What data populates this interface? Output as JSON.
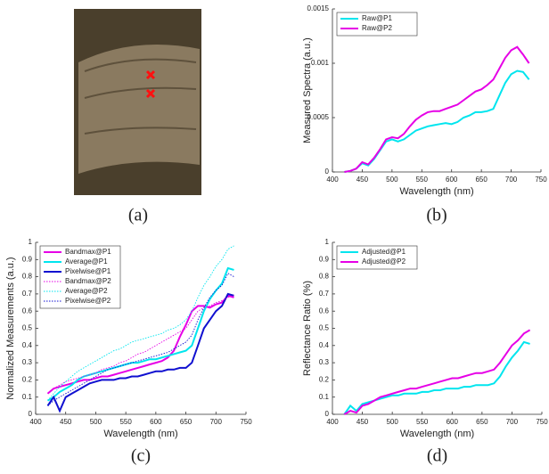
{
  "image_panel": {
    "caption": "(a)"
  },
  "chart_data": [
    {
      "type": "line",
      "caption": "(b)",
      "xlabel": "Wavelength (nm)",
      "ylabel": "Measured Spectra (a.u.)",
      "xlim": [
        400,
        750
      ],
      "xticks": [
        400,
        450,
        500,
        550,
        600,
        650,
        700,
        750
      ],
      "ylim": [
        0,
        0.0015
      ],
      "yticks": [
        0,
        0.0005,
        0.001,
        0.0015
      ],
      "legend": "upper-left",
      "x": [
        420,
        430,
        440,
        450,
        460,
        470,
        480,
        490,
        500,
        510,
        520,
        530,
        540,
        550,
        560,
        570,
        580,
        590,
        600,
        610,
        620,
        630,
        640,
        650,
        660,
        670,
        680,
        690,
        700,
        710,
        720,
        730
      ],
      "series": [
        {
          "name": "Raw@P1",
          "color": "#00e5ee",
          "line_style": "solid",
          "values": [
            0,
            1e-05,
            3e-05,
            8e-05,
            6e-05,
            0.00012,
            0.0002,
            0.00028,
            0.0003,
            0.00028,
            0.0003,
            0.00034,
            0.00038,
            0.0004,
            0.00042,
            0.00043,
            0.00044,
            0.00045,
            0.00044,
            0.00046,
            0.0005,
            0.00052,
            0.00055,
            0.00055,
            0.00056,
            0.00058,
            0.0007,
            0.00082,
            0.0009,
            0.00093,
            0.00092,
            0.00085
          ]
        },
        {
          "name": "Raw@P2",
          "color": "#e600e6",
          "line_style": "solid",
          "values": [
            0,
            1e-05,
            3e-05,
            9e-05,
            7e-05,
            0.00013,
            0.00021,
            0.0003,
            0.00032,
            0.00031,
            0.00035,
            0.00042,
            0.00048,
            0.00052,
            0.00055,
            0.00056,
            0.00056,
            0.00058,
            0.0006,
            0.00062,
            0.00066,
            0.0007,
            0.00074,
            0.00076,
            0.0008,
            0.00085,
            0.00095,
            0.00105,
            0.00112,
            0.00115,
            0.00108,
            0.001
          ]
        }
      ]
    },
    {
      "type": "line",
      "caption": "(c)",
      "xlabel": "Wavelength (nm)",
      "ylabel": "Normalized Measurements (a.u.)",
      "xlim": [
        400,
        750
      ],
      "xticks": [
        400,
        450,
        500,
        550,
        600,
        650,
        700,
        750
      ],
      "ylim": [
        0,
        1
      ],
      "yticks": [
        0,
        0.1,
        0.2,
        0.3,
        0.4,
        0.5,
        0.6,
        0.7,
        0.8,
        0.9,
        1
      ],
      "legend": "upper-left",
      "x": [
        420,
        430,
        440,
        450,
        460,
        470,
        480,
        490,
        500,
        510,
        520,
        530,
        540,
        550,
        560,
        570,
        580,
        590,
        600,
        610,
        620,
        630,
        640,
        650,
        660,
        670,
        680,
        690,
        700,
        710,
        720,
        730
      ],
      "series": [
        {
          "name": "Bandmax@P1",
          "color": "#e600e6",
          "line_style": "solid",
          "values": [
            0.12,
            0.15,
            0.16,
            0.17,
            0.18,
            0.19,
            0.2,
            0.2,
            0.21,
            0.22,
            0.22,
            0.23,
            0.24,
            0.25,
            0.26,
            0.27,
            0.28,
            0.29,
            0.3,
            0.31,
            0.33,
            0.37,
            0.45,
            0.52,
            0.6,
            0.63,
            0.63,
            0.62,
            0.64,
            0.65,
            0.69,
            0.68
          ]
        },
        {
          "name": "Average@P1",
          "color": "#00e5ee",
          "line_style": "solid",
          "values": [
            0.08,
            0.1,
            0.13,
            0.15,
            0.17,
            0.2,
            0.22,
            0.23,
            0.24,
            0.25,
            0.26,
            0.27,
            0.28,
            0.29,
            0.3,
            0.3,
            0.31,
            0.32,
            0.32,
            0.33,
            0.34,
            0.35,
            0.36,
            0.37,
            0.4,
            0.5,
            0.6,
            0.67,
            0.72,
            0.76,
            0.85,
            0.84
          ]
        },
        {
          "name": "Pixelwise@P1",
          "color": "#1010d0",
          "line_style": "solid",
          "values": [
            0.05,
            0.1,
            0.02,
            0.1,
            0.12,
            0.14,
            0.16,
            0.18,
            0.19,
            0.2,
            0.2,
            0.2,
            0.21,
            0.21,
            0.22,
            0.22,
            0.23,
            0.24,
            0.25,
            0.25,
            0.26,
            0.26,
            0.27,
            0.27,
            0.3,
            0.4,
            0.5,
            0.55,
            0.6,
            0.63,
            0.7,
            0.69
          ]
        },
        {
          "name": "Bandmax@P2",
          "color": "#e600e6",
          "line_style": "dotted",
          "values": [
            0.12,
            0.15,
            0.17,
            0.19,
            0.2,
            0.21,
            0.22,
            0.23,
            0.24,
            0.26,
            0.27,
            0.28,
            0.3,
            0.31,
            0.33,
            0.35,
            0.36,
            0.38,
            0.4,
            0.42,
            0.44,
            0.46,
            0.48,
            0.5,
            0.55,
            0.6,
            0.62,
            0.63,
            0.65,
            0.66,
            0.68,
            0.69
          ]
        },
        {
          "name": "Average@P2",
          "color": "#00e5ee",
          "line_style": "dotted",
          "values": [
            0.08,
            0.12,
            0.16,
            0.19,
            0.22,
            0.25,
            0.27,
            0.29,
            0.31,
            0.33,
            0.35,
            0.37,
            0.38,
            0.4,
            0.42,
            0.43,
            0.44,
            0.45,
            0.46,
            0.47,
            0.49,
            0.5,
            0.52,
            0.55,
            0.6,
            0.68,
            0.75,
            0.8,
            0.86,
            0.9,
            0.96,
            0.98
          ]
        },
        {
          "name": "Pixelwise@P2",
          "color": "#1010d0",
          "line_style": "dotted",
          "values": [
            0.05,
            0.08,
            0.1,
            0.12,
            0.14,
            0.16,
            0.18,
            0.2,
            0.22,
            0.24,
            0.26,
            0.27,
            0.28,
            0.29,
            0.3,
            0.31,
            0.32,
            0.33,
            0.34,
            0.35,
            0.36,
            0.38,
            0.4,
            0.42,
            0.46,
            0.55,
            0.62,
            0.68,
            0.72,
            0.75,
            0.82,
            0.8
          ]
        }
      ]
    },
    {
      "type": "line",
      "caption": "(d)",
      "xlabel": "Wavelength (nm)",
      "ylabel": "Reflectance Ratio (%)",
      "xlim": [
        400,
        750
      ],
      "xticks": [
        400,
        450,
        500,
        550,
        600,
        650,
        700,
        750
      ],
      "ylim": [
        0,
        1
      ],
      "yticks": [
        0,
        0.1,
        0.2,
        0.3,
        0.4,
        0.5,
        0.6,
        0.7,
        0.8,
        0.9,
        1
      ],
      "legend": "upper-left",
      "x": [
        420,
        430,
        440,
        450,
        460,
        470,
        480,
        490,
        500,
        510,
        520,
        530,
        540,
        550,
        560,
        570,
        580,
        590,
        600,
        610,
        620,
        630,
        640,
        650,
        660,
        670,
        680,
        690,
        700,
        710,
        720,
        730
      ],
      "series": [
        {
          "name": "Adjusted@P1",
          "color": "#00e5ee",
          "line_style": "solid",
          "values": [
            0,
            0.05,
            0.02,
            0.06,
            0.07,
            0.08,
            0.09,
            0.1,
            0.11,
            0.11,
            0.12,
            0.12,
            0.12,
            0.13,
            0.13,
            0.14,
            0.14,
            0.15,
            0.15,
            0.15,
            0.16,
            0.16,
            0.17,
            0.17,
            0.17,
            0.18,
            0.22,
            0.28,
            0.33,
            0.37,
            0.42,
            0.41
          ]
        },
        {
          "name": "Adjusted@P2",
          "color": "#e600e6",
          "line_style": "solid",
          "values": [
            0,
            0.02,
            0.01,
            0.05,
            0.06,
            0.08,
            0.1,
            0.11,
            0.12,
            0.13,
            0.14,
            0.15,
            0.15,
            0.16,
            0.17,
            0.18,
            0.19,
            0.2,
            0.21,
            0.21,
            0.22,
            0.23,
            0.24,
            0.24,
            0.25,
            0.26,
            0.3,
            0.35,
            0.4,
            0.43,
            0.47,
            0.49
          ]
        }
      ]
    }
  ]
}
